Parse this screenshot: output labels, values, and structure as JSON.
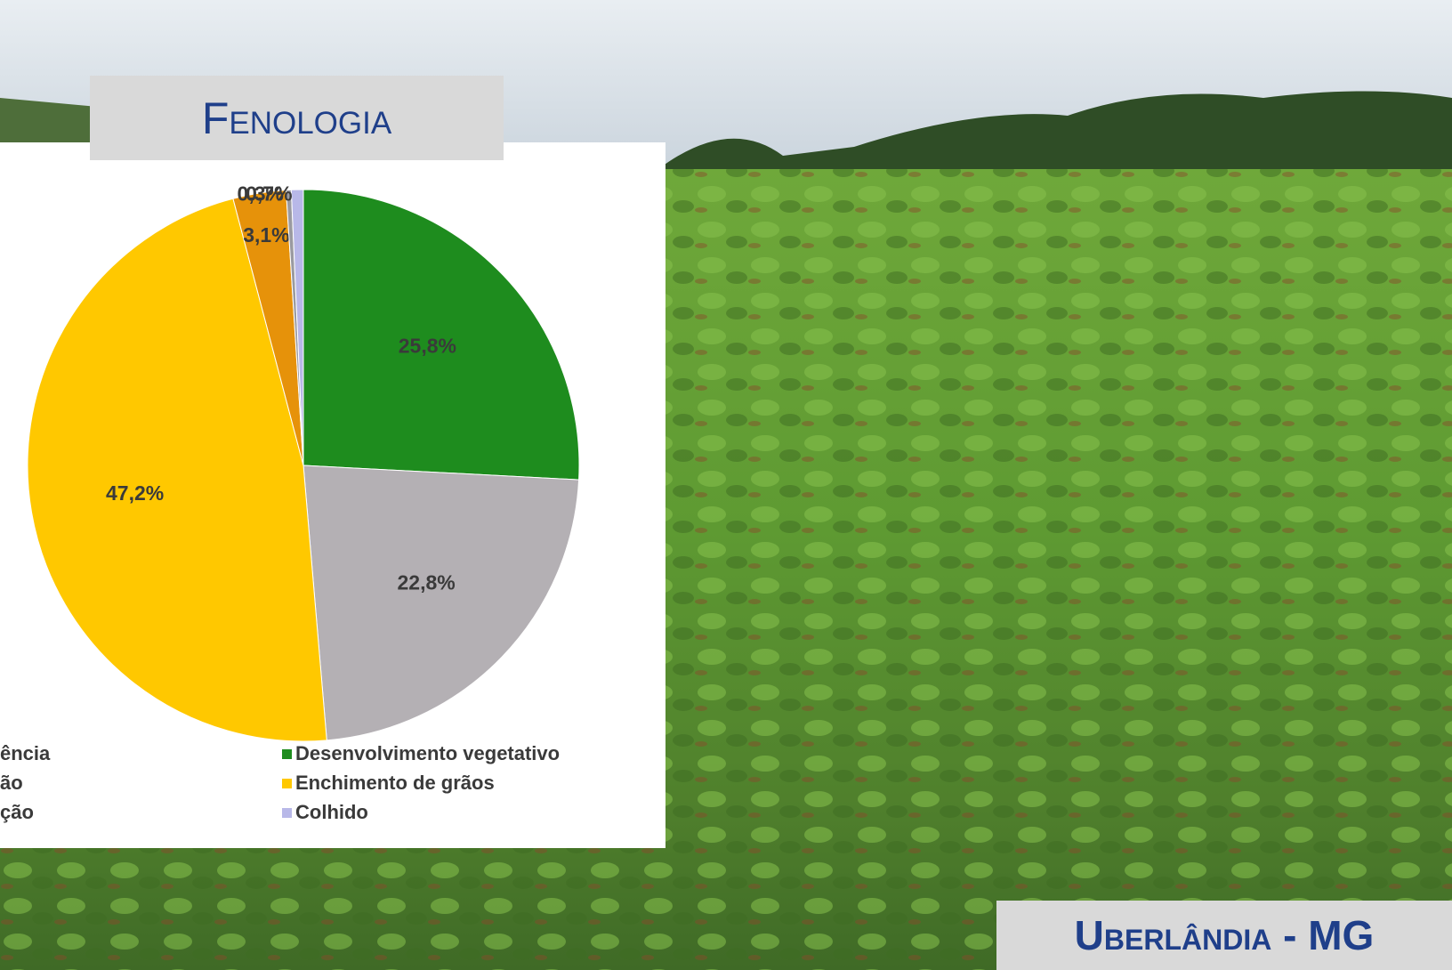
{
  "header": {
    "title": "Fenologia"
  },
  "footer": {
    "location": "Uberlândia - MG"
  },
  "chart_data": {
    "type": "pie",
    "values": [
      25.8,
      22.8,
      47.2,
      3.1,
      0.3,
      0.7
    ],
    "value_labels": [
      "25,8%",
      "22,8%",
      "47,2%",
      "3,1%",
      "0,3%",
      "0,7%"
    ],
    "colors": [
      "#1e8c1e",
      "#b4b0b4",
      "#ffc800",
      "#e6920a",
      "#9a9aa0",
      "#b8b8e8"
    ],
    "legend": [
      {
        "label": "ência"
      },
      {
        "label": "Desenvolvimento vegetativo",
        "color": "#1e8c1e"
      },
      {
        "label": "ão"
      },
      {
        "label": "Enchimento de grãos",
        "color": "#ffc800"
      },
      {
        "label": "ção"
      },
      {
        "label": "Colhido",
        "color": "#b8b8e8"
      }
    ]
  }
}
